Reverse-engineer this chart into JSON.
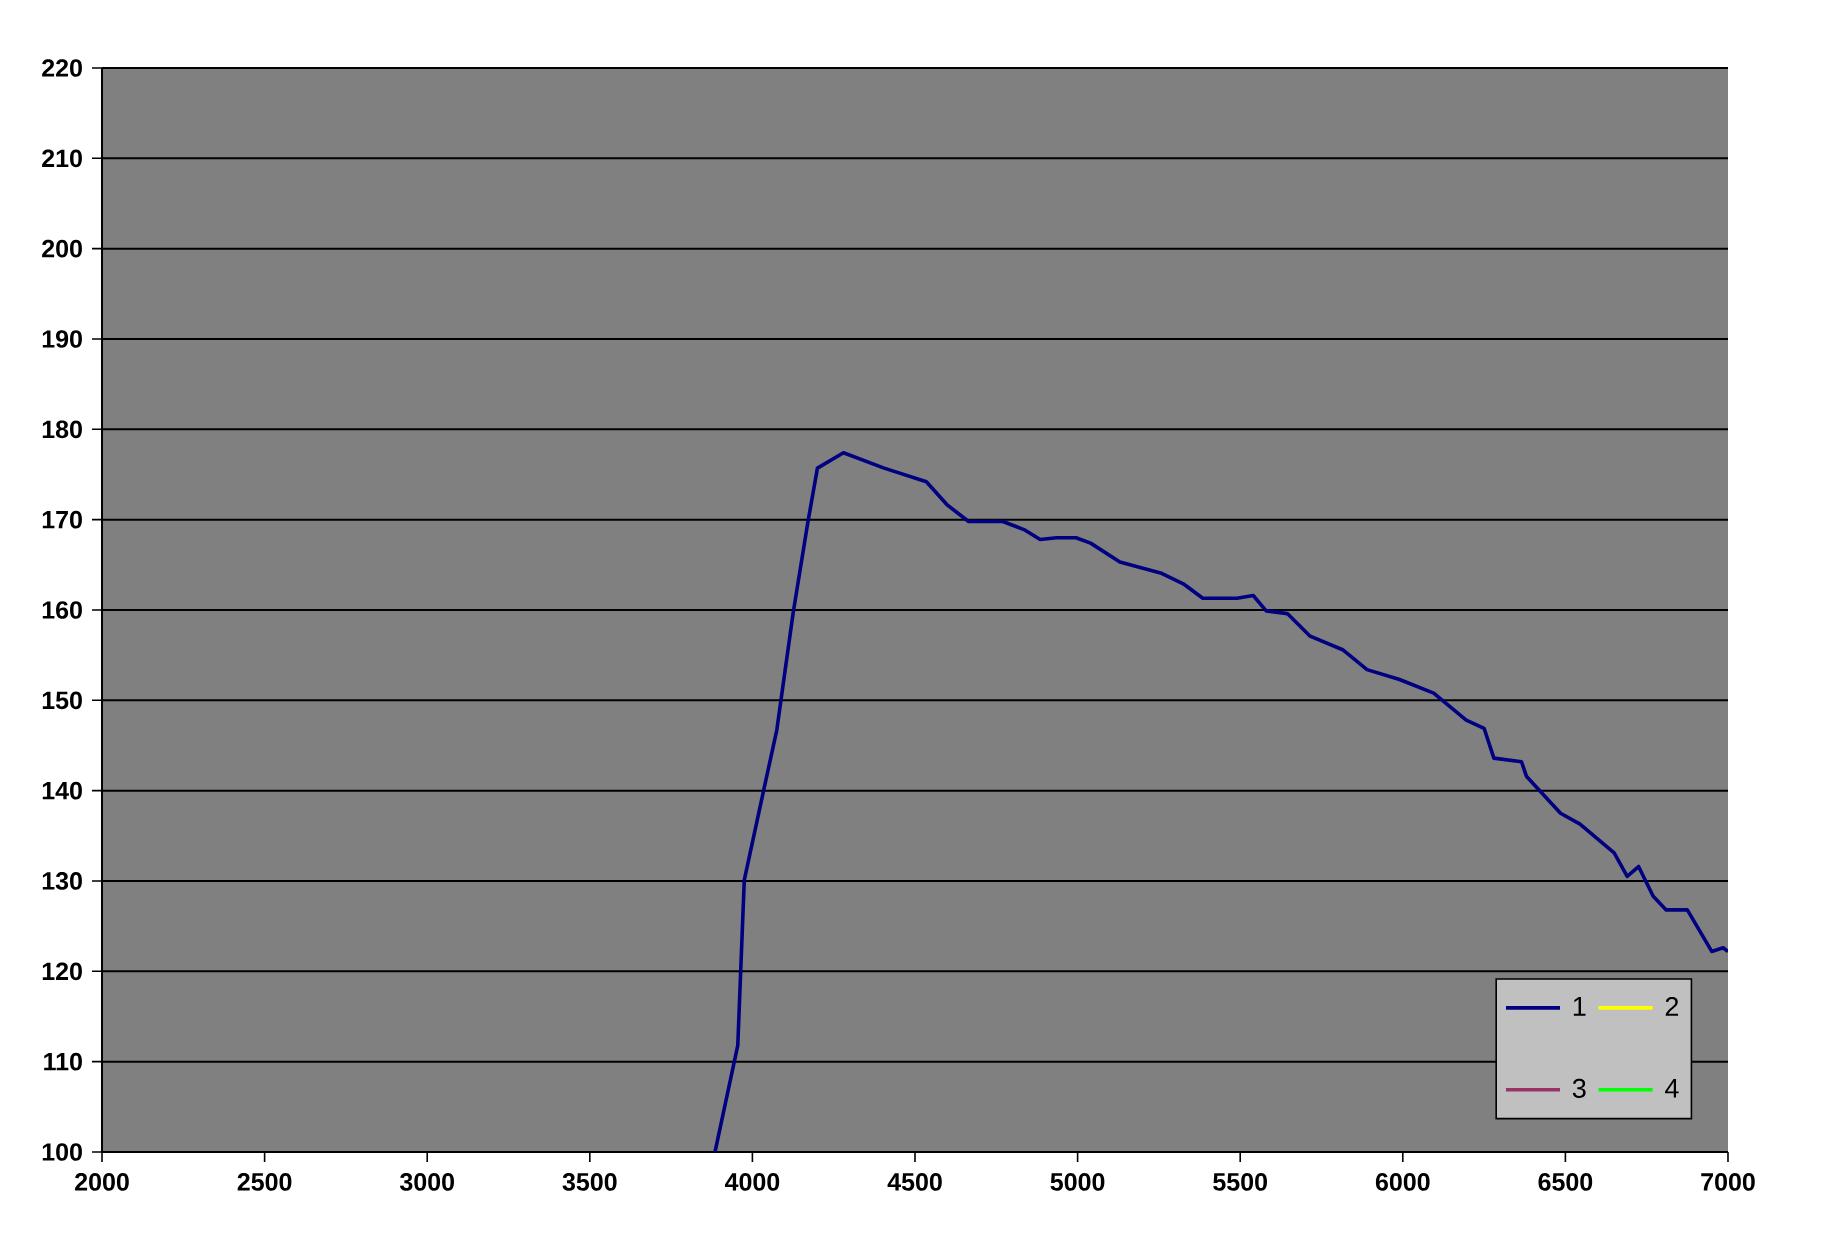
{
  "chart_data": {
    "type": "line",
    "series": [
      {
        "name": "1",
        "color": "#000080",
        "x": [
          3885,
          3955,
          3975,
          4035,
          4075,
          4125,
          4170,
          4200,
          4280,
          4405,
          4535,
          4600,
          4665,
          4770,
          4835,
          4885,
          4935,
          4995,
          5040,
          5130,
          5255,
          5325,
          5385,
          5490,
          5540,
          5580,
          5645,
          5715,
          5815,
          5890,
          5990,
          6095,
          6195,
          6250,
          6280,
          6365,
          6380,
          6485,
          6545,
          6650,
          6690,
          6725,
          6770,
          6810,
          6875,
          6950,
          6985,
          7000
        ],
        "values": [
          100,
          111.8,
          130.1,
          140.1,
          146.7,
          159.6,
          169.6,
          175.7,
          177.4,
          175.7,
          174.2,
          171.6,
          169.8,
          169.8,
          168.9,
          167.8,
          168.0,
          168.0,
          167.4,
          165.3,
          164.1,
          162.9,
          161.3,
          161.3,
          161.6,
          159.9,
          159.6,
          157.1,
          155.6,
          153.4,
          152.3,
          150.8,
          147.8,
          146.9,
          143.6,
          143.2,
          141.6,
          137.5,
          136.3,
          133.1,
          130.5,
          131.6,
          128.3,
          126.8,
          126.8,
          122.2,
          122.6,
          122.2
        ]
      },
      {
        "name": "2",
        "color": "#ffff00"
      },
      {
        "name": "3",
        "color": "#993366"
      },
      {
        "name": "4",
        "color": "#00ff00"
      }
    ],
    "xlim": [
      2000,
      7000
    ],
    "xticks": [
      2000,
      2500,
      3000,
      3500,
      4000,
      4500,
      5000,
      5500,
      6000,
      6500,
      7000
    ],
    "ylim": [
      100,
      220
    ],
    "yticks": [
      100,
      110,
      120,
      130,
      140,
      150,
      160,
      170,
      180,
      190,
      200,
      210,
      220
    ],
    "grid": "y",
    "legend": "bottom right",
    "line_style": "solid"
  }
}
